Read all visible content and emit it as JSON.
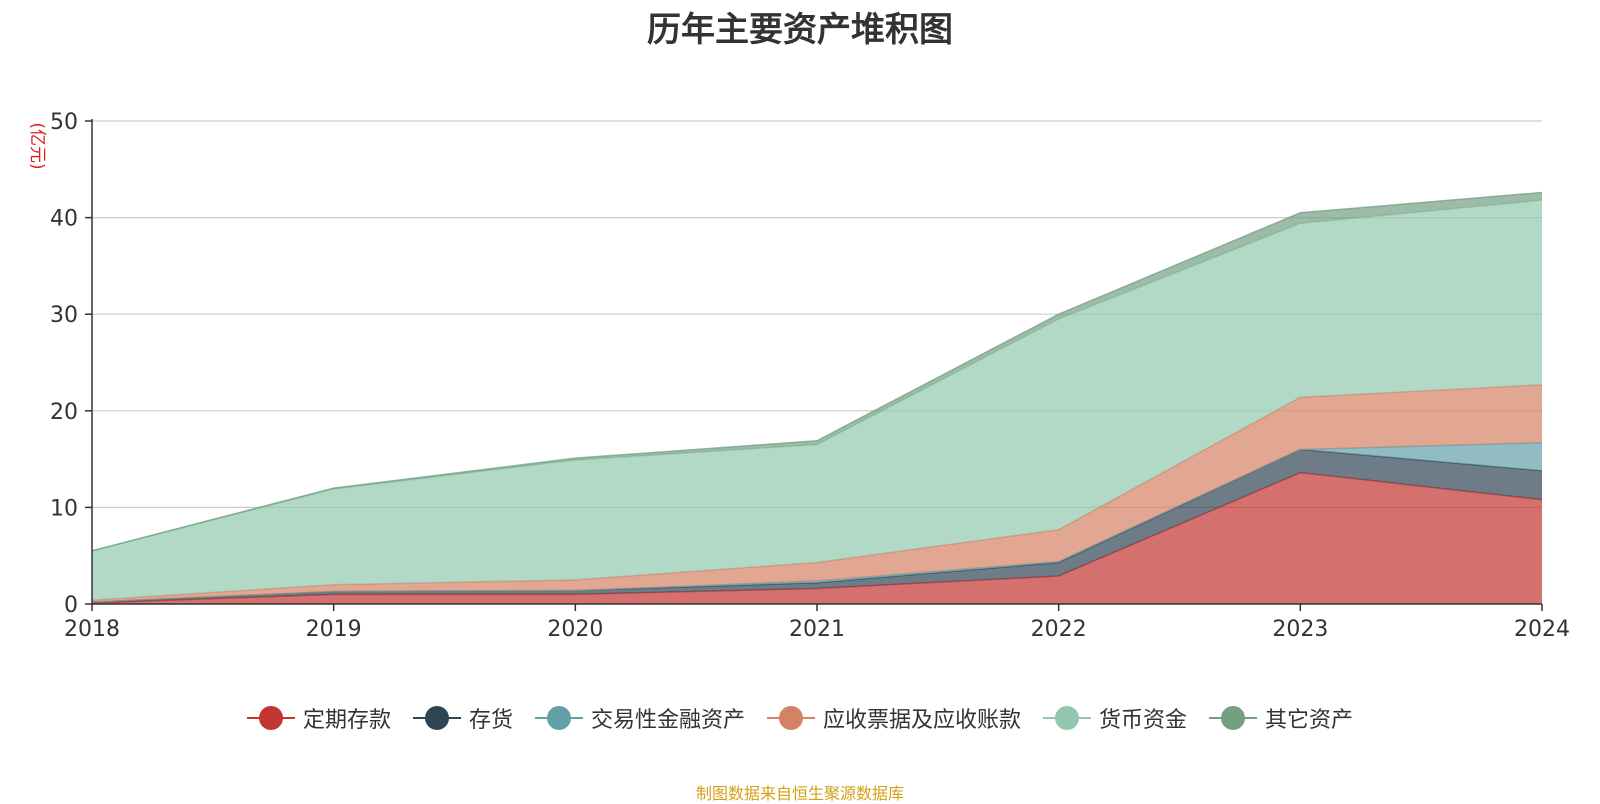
{
  "chart_data": {
    "type": "area",
    "stacked": true,
    "title": "历年主要资产堆积图",
    "ylabel": "(亿元)",
    "x": [
      "2018",
      "2019",
      "2020",
      "2021",
      "2022",
      "2023",
      "2024"
    ],
    "ylim": [
      0,
      50
    ],
    "yticks": [
      0,
      10,
      20,
      30,
      40,
      50
    ],
    "grid": true,
    "legend_position": "bottom",
    "series": [
      {
        "name": "定期存款",
        "color": "#c23531",
        "values": [
          0.1,
          1.0,
          1.0,
          1.6,
          2.9,
          13.6,
          10.8
        ]
      },
      {
        "name": "存货",
        "color": "#2f4554",
        "values": [
          0.1,
          0.3,
          0.4,
          0.6,
          1.4,
          2.4,
          3.0
        ]
      },
      {
        "name": "交易性金融资产",
        "color": "#61a0a8",
        "values": [
          0.0,
          0.0,
          0.0,
          0.2,
          0.1,
          0.0,
          2.9
        ]
      },
      {
        "name": "应收票据及应收账款",
        "color": "#d48265",
        "values": [
          0.2,
          0.7,
          1.1,
          1.9,
          3.3,
          5.4,
          6.0
        ]
      },
      {
        "name": "货币资金",
        "color": "#91c7ae",
        "values": [
          5.1,
          9.9,
          12.4,
          12.2,
          21.8,
          18.0,
          19.1
        ]
      },
      {
        "name": "其它资产",
        "color": "#749f83",
        "values": [
          0.0,
          0.1,
          0.2,
          0.4,
          0.5,
          1.1,
          0.8
        ]
      }
    ]
  },
  "source_text": "制图数据来自恒生聚源数据库"
}
